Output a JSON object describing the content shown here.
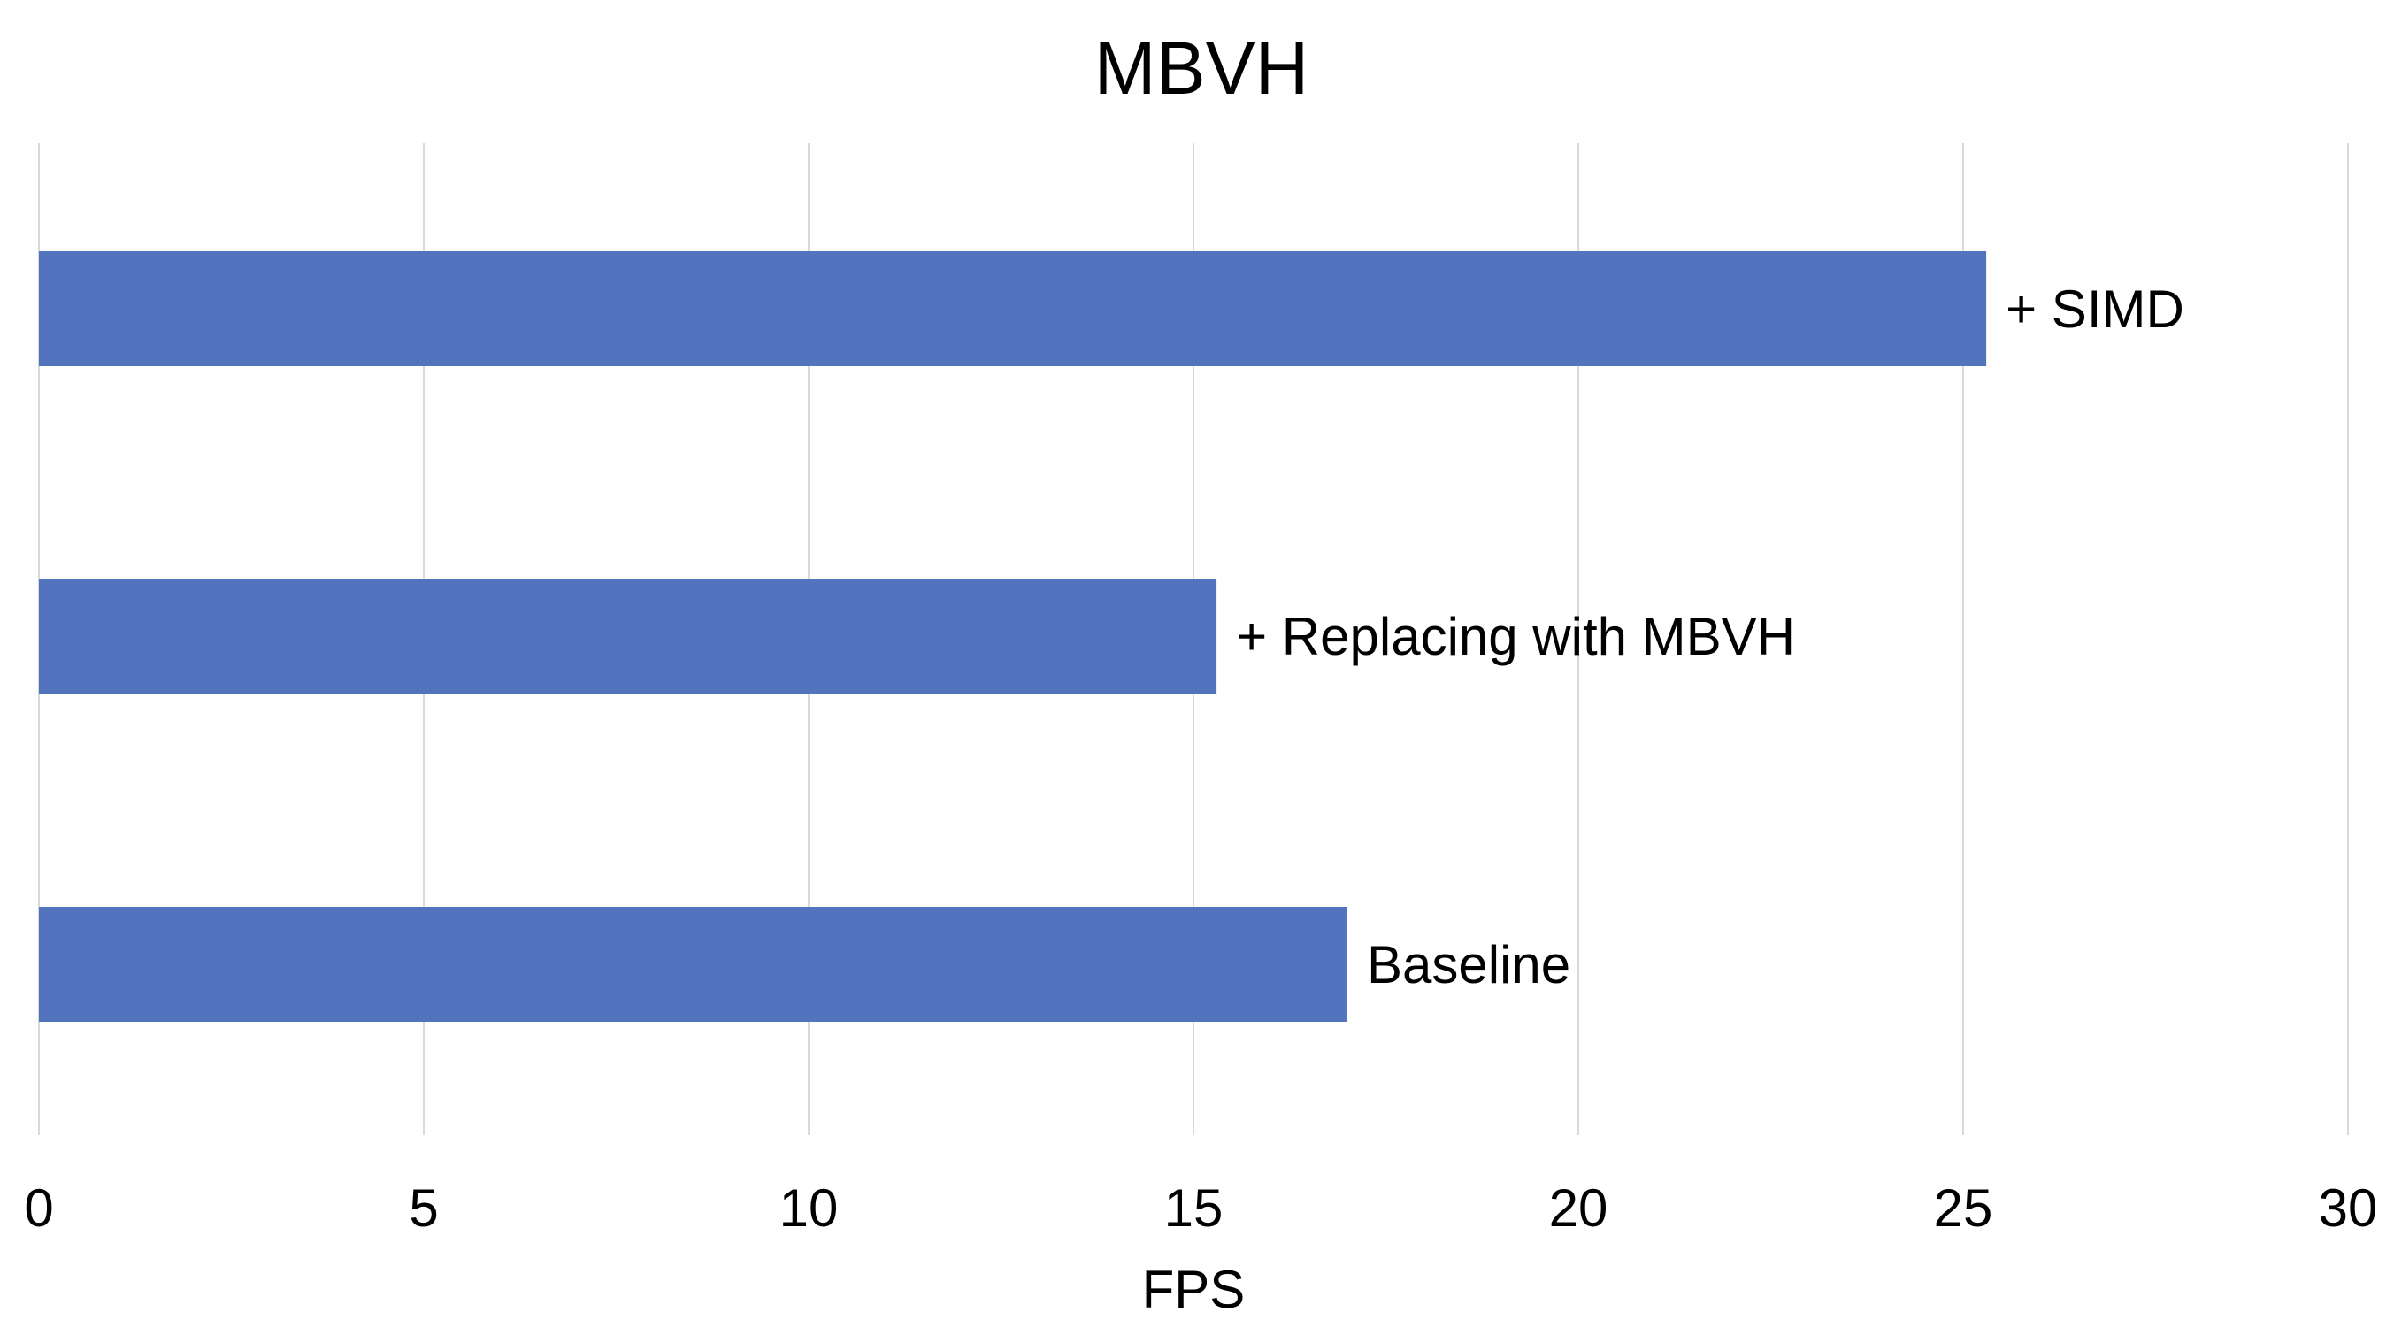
{
  "chart_data": {
    "type": "bar",
    "orientation": "horizontal",
    "title": "MBVH",
    "xlabel": "FPS",
    "ylabel": "",
    "xlim": [
      0,
      30
    ],
    "xticks": [
      "0",
      "5",
      "10",
      "15",
      "20",
      "25",
      "30"
    ],
    "categories": [
      "+ SIMD",
      "+ Replacing with MBVH",
      "Baseline"
    ],
    "values": [
      25.3,
      15.3,
      17.0
    ],
    "grid": true,
    "legend": "none",
    "bar_color": "#5273BE",
    "grid_color": "#D9D9D9"
  }
}
